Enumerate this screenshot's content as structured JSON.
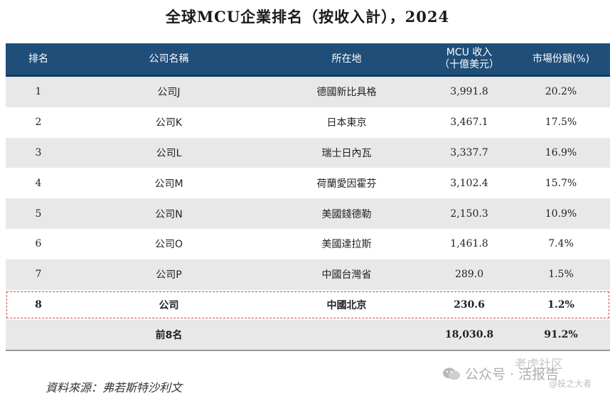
{
  "title": "全球MCU企業排名（按收入計），2024",
  "headers": {
    "rank": "排名",
    "company": "公司名稱",
    "location": "所在地",
    "revenue": "MCU 收入\n（十億美元）",
    "share": "市場份額(%)"
  },
  "rows": [
    {
      "rank": "1",
      "company": "公司J",
      "location": "德國新比具格",
      "revenue": "3,991.8",
      "share": "20.2%"
    },
    {
      "rank": "2",
      "company": "公司K",
      "location": "日本東京",
      "revenue": "3,467.1",
      "share": "17.5%"
    },
    {
      "rank": "3",
      "company": "公司L",
      "location": "瑞士日內瓦",
      "revenue": "3,337.7",
      "share": "16.9%"
    },
    {
      "rank": "4",
      "company": "公司M",
      "location": "荷蘭愛因霍芬",
      "revenue": "3,102.4",
      "share": "15.7%"
    },
    {
      "rank": "5",
      "company": "公司N",
      "location": "美國錢德勒",
      "revenue": "2,150.3",
      "share": "10.9%"
    },
    {
      "rank": "6",
      "company": "公司O",
      "location": "美國達拉斯",
      "revenue": "1,461.8",
      "share": "7.4%"
    },
    {
      "rank": "7",
      "company": "公司P",
      "location": "中國台灣省",
      "revenue": "289.0",
      "share": "1.5%"
    },
    {
      "rank": "8",
      "company": "公司",
      "location": "中國北京",
      "revenue": "230.6",
      "share": "1.2%"
    }
  ],
  "total": {
    "label": "前8名",
    "revenue": "18,030.8",
    "share": "91.2%"
  },
  "source": "資料來源：弗若斯特沙利文",
  "watermark": {
    "main": "公众号 · 活报告",
    "top": "老虎社区",
    "small": "@投之大者"
  },
  "colors": {
    "header_bg": "#1f4e79",
    "stripe": "#e8e8e8",
    "highlight_border": "#d24a4a"
  }
}
